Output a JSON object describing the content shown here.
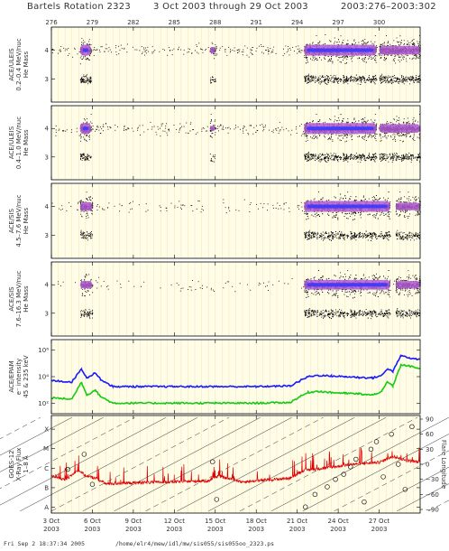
{
  "title": {
    "rotation": "Bartels Rotation 2323",
    "dates": "3 Oct 2003 through 29 Oct 2003",
    "doy": "2003:276–2003:302"
  },
  "footer": {
    "timestamp": "Fri Sep  2 18:37:34 2005",
    "path": "/home/elr4/mew/idl/mw/sis055/sis055oo_2323.ps"
  },
  "chart_data": {
    "type": "scatter",
    "x_doy_range": [
      276,
      303
    ],
    "top_ticks": [
      "276",
      "279",
      "282",
      "285",
      "288",
      "291",
      "294",
      "297",
      "300"
    ],
    "top_tick_doy": [
      276,
      279,
      282,
      285,
      288,
      291,
      294,
      297,
      300
    ],
    "bottom_ticks": [
      {
        "day": "3 Oct",
        "year": "2003",
        "doy": 276
      },
      {
        "day": "6 Oct",
        "year": "2003",
        "doy": 279
      },
      {
        "day": "9 Oct",
        "year": "2003",
        "doy": 282
      },
      {
        "day": "12 Oct",
        "year": "2003",
        "doy": 285
      },
      {
        "day": "15 Oct",
        "year": "2003",
        "doy": 288
      },
      {
        "day": "18 Oct",
        "year": "2003",
        "doy": 291
      },
      {
        "day": "21 Oct",
        "year": "2003",
        "doy": 294
      },
      {
        "day": "24 Oct",
        "year": "2003",
        "doy": 297
      },
      {
        "day": "27 Oct",
        "year": "2003",
        "doy": 300
      }
    ],
    "panels": [
      {
        "id": "ulets-low",
        "label_lines": [
          "ACE/ULEIS",
          "0.2–0.4 MeV/nuc",
          "He Mass"
        ],
        "y_ticks": [
          "4",
          "3"
        ],
        "y_tick_values": [
          4,
          3
        ],
        "ylim": [
          2.2,
          4.8
        ],
        "active_periods": [
          [
            278.1,
            278.9,
            1.0
          ],
          [
            287.6,
            288.0,
            0.6
          ],
          [
            294.5,
            299.8,
            1.0
          ],
          [
            300.0,
            303.0,
            0.8
          ]
        ],
        "background_activity": 0.25
      },
      {
        "id": "ulets-high",
        "label_lines": [
          "ACE/ULEIS",
          "0.4–1.0 MeV/nuc",
          "He Mass"
        ],
        "y_ticks": [
          "4",
          "3"
        ],
        "y_tick_values": [
          4,
          3
        ],
        "ylim": [
          2.2,
          4.8
        ],
        "active_periods": [
          [
            278.1,
            278.9,
            1.0
          ],
          [
            287.6,
            288.0,
            0.5
          ],
          [
            294.5,
            299.8,
            1.0
          ],
          [
            300.0,
            303.0,
            0.8
          ]
        ],
        "background_activity": 0.2
      },
      {
        "id": "sis-low",
        "label_lines": [
          "ACE/SIS",
          "4.5–7.6 MeV/nuc",
          "He Mass"
        ],
        "y_ticks": [
          "4",
          "3"
        ],
        "y_tick_values": [
          4,
          3
        ],
        "ylim": [
          2.2,
          4.8
        ],
        "active_periods": [
          [
            278.1,
            279.0,
            0.8
          ],
          [
            294.5,
            300.8,
            1.0
          ],
          [
            301.2,
            303.0,
            0.7
          ]
        ],
        "background_activity": 0.1
      },
      {
        "id": "sis-high",
        "label_lines": [
          "ACE/SIS",
          "7.6–16.3 MeV/nuc",
          "He Mass"
        ],
        "y_ticks": [
          "4",
          "3"
        ],
        "y_tick_values": [
          4,
          3
        ],
        "ylim": [
          2.2,
          4.8
        ],
        "active_periods": [
          [
            278.1,
            279.0,
            0.7
          ],
          [
            294.5,
            300.8,
            0.9
          ],
          [
            301.2,
            303.0,
            0.7
          ]
        ],
        "background_activity": 0.08
      },
      {
        "id": "epam",
        "label_lines": [
          "ACE/EPAM",
          "e⁻ intensity",
          "45 & 235 keV"
        ],
        "y_ticks": [
          "10⁶",
          "10⁴",
          "10²"
        ],
        "y_tick_values": [
          6,
          4,
          2
        ],
        "ylim": [
          1.2,
          6.8
        ],
        "series": [
          {
            "color": "#1a1aff",
            "x": [
              276.0,
              277.5,
              278.2,
              278.6,
              279.2,
              279.6,
              280.5,
              282,
              285,
              288,
              291,
              293.5,
              294.2,
              294.8,
              295.5,
              296.5,
              297.5,
              298.5,
              299.5,
              300.2,
              300.6,
              301.0,
              301.6,
              302.2,
              303.0
            ],
            "y": [
              3.7,
              3.6,
              4.6,
              3.9,
              4.3,
              3.8,
              3.25,
              3.25,
              3.25,
              3.25,
              3.25,
              3.3,
              3.7,
              4.0,
              4.1,
              4.05,
              4.0,
              3.95,
              3.9,
              4.1,
              4.6,
              4.4,
              5.6,
              5.4,
              5.3
            ]
          },
          {
            "color": "#11cc11",
            "x": [
              276.0,
              277.5,
              278.2,
              278.6,
              279.2,
              279.6,
              280.5,
              282,
              285,
              288,
              291,
              293.5,
              294.2,
              294.8,
              295.5,
              296.5,
              297.5,
              298.5,
              299.5,
              300.2,
              300.6,
              301.0,
              301.6,
              302.2,
              303.0
            ],
            "y": [
              2.4,
              2.3,
              3.6,
              2.6,
              3.0,
              2.5,
              2.0,
              2.0,
              2.0,
              2.0,
              2.0,
              2.05,
              2.5,
              2.8,
              2.9,
              2.8,
              2.75,
              2.7,
              2.6,
              2.9,
              3.6,
              3.3,
              4.9,
              4.8,
              4.6
            ]
          }
        ]
      },
      {
        "id": "goes",
        "label_lines": [
          "GOES-12",
          "X-Ray Flux",
          "1–8 Å"
        ],
        "y_ticks": [
          "X",
          "M",
          "C",
          "B",
          "A"
        ],
        "y_tick_values": [
          4,
          3,
          2,
          1,
          0
        ],
        "ylim": [
          -0.3,
          4.7
        ],
        "right_ticks": [
          "90",
          "60",
          "30",
          "0",
          "−30",
          "−60",
          "−90"
        ],
        "right_tick_values": [
          90,
          60,
          30,
          0,
          -30,
          -60,
          -90
        ],
        "right_label": "Flare Longitude",
        "flux_color": "#dd0000",
        "flux_anchors": {
          "x": [
            276.0,
            277.0,
            278.0,
            278.5,
            279.2,
            280.0,
            282.0,
            285.0,
            287.5,
            288.2,
            290.0,
            292.0,
            293.5,
            294.5,
            296.0,
            298.0,
            300.0,
            301.0,
            302.0,
            303.0
          ],
          "y": [
            1.6,
            1.4,
            1.9,
            1.6,
            1.5,
            1.2,
            1.25,
            1.3,
            1.35,
            1.6,
            1.3,
            1.4,
            1.5,
            1.9,
            2.0,
            2.2,
            2.3,
            2.6,
            2.4,
            2.3
          ]
        },
        "flares": {
          "x": [
            277.2,
            278.4,
            279.0,
            287.8,
            288.1,
            294.6,
            295.3,
            296.2,
            296.8,
            297.4,
            297.9,
            298.3,
            298.9,
            299.4,
            299.8,
            300.3,
            300.9,
            301.4,
            301.9,
            302.4
          ],
          "lon": [
            -10,
            20,
            -40,
            5,
            -70,
            -85,
            -60,
            -45,
            -30,
            -20,
            -5,
            10,
            -75,
            30,
            45,
            -25,
            60,
            0,
            -50,
            75
          ]
        }
      }
    ]
  }
}
